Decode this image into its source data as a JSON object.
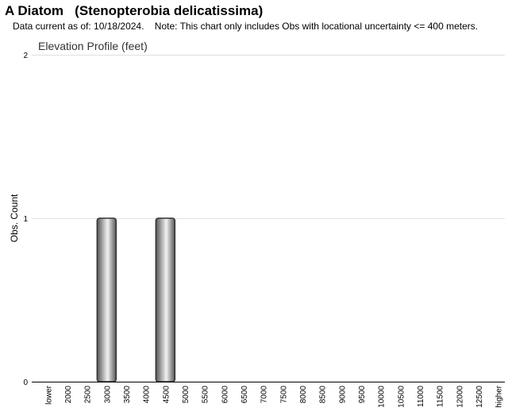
{
  "header": {
    "title": "A Diatom   (Stenopterobia delicatissima)",
    "subtitle": "Data current as of: 10/18/2024.    Note: This chart only includes Obs with locational uncertainty <= 400 meters."
  },
  "chart_data": {
    "type": "bar",
    "title": "Elevation Profile (feet)",
    "xlabel": "",
    "ylabel": "Obs. Count",
    "ylim": [
      0,
      2
    ],
    "yticks": [
      0,
      1,
      2
    ],
    "grid": true,
    "categories": [
      "lower",
      "2000",
      "2500",
      "3000",
      "3500",
      "4000",
      "4500",
      "5000",
      "5500",
      "6000",
      "6500",
      "7000",
      "7500",
      "8000",
      "8500",
      "9000",
      "9500",
      "10000",
      "10500",
      "11000",
      "11500",
      "12000",
      "12500",
      "higher"
    ],
    "values": [
      0,
      0,
      0,
      1,
      0,
      0,
      1,
      0,
      0,
      0,
      0,
      0,
      0,
      0,
      0,
      0,
      0,
      0,
      0,
      0,
      0,
      0,
      0,
      0
    ],
    "colors": {
      "bar_dark": "#555555",
      "bar_light": "#f2f2f2",
      "grid": "#e0e0e0",
      "axis": "#000000"
    }
  }
}
